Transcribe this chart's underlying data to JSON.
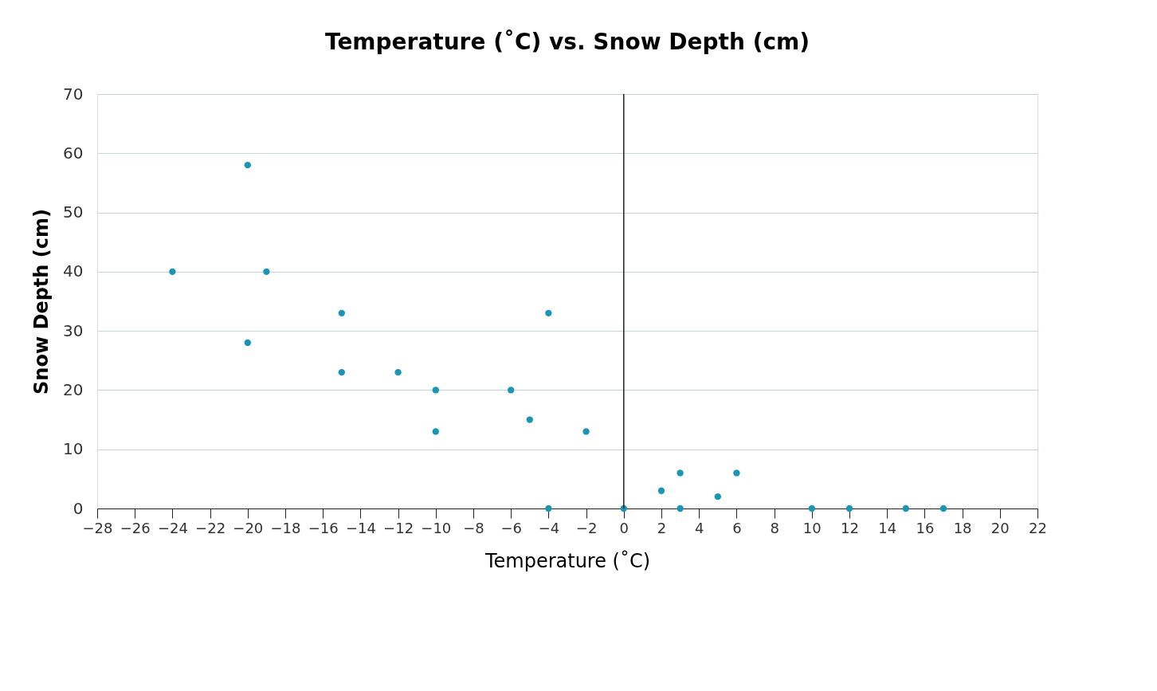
{
  "chart_data": {
    "type": "scatter",
    "title": "Temperature (˚C) vs. Snow Depth (cm)",
    "xlabel": "Temperature (˚C)",
    "ylabel": "Snow Depth (cm)",
    "x": [
      -24,
      -20,
      -19,
      -20,
      -15,
      -15,
      -12,
      -10,
      -10,
      -6,
      -5,
      -4,
      -2,
      -4,
      0,
      2,
      3,
      3,
      5,
      6,
      10,
      12,
      15,
      17
    ],
    "series": [
      {
        "color": "#1a96b4",
        "values": [
          40,
          58,
          40,
          28,
          33,
          23,
          23,
          20,
          13,
          20,
          15,
          33,
          13,
          0,
          0,
          3,
          6,
          0,
          2,
          6,
          0,
          0,
          0,
          0
        ]
      }
    ],
    "xlim": [
      -28,
      22
    ],
    "xticks": [
      -28,
      -26,
      -24,
      -22,
      -20,
      -18,
      -16,
      -14,
      -12,
      -10,
      -8,
      -6,
      -4,
      -2,
      0,
      2,
      4,
      6,
      8,
      10,
      12,
      14,
      16,
      18,
      20,
      22
    ],
    "ylim": [
      0,
      70
    ],
    "yticks": [
      0,
      10,
      20,
      30,
      40,
      50,
      60,
      70
    ],
    "grid": "y",
    "marker": "circle",
    "legend": false
  }
}
